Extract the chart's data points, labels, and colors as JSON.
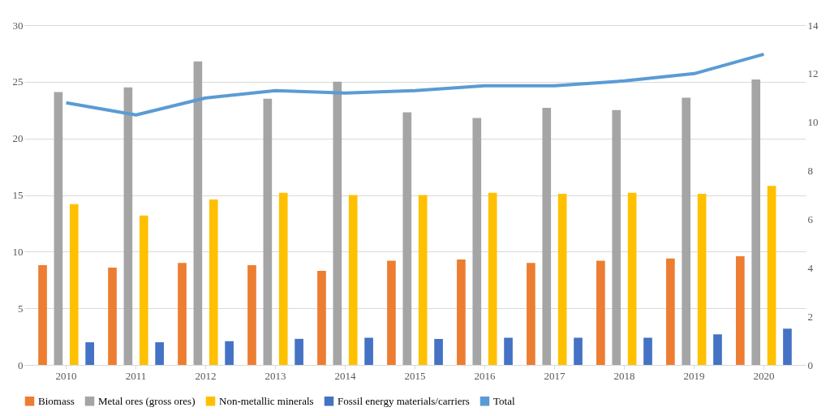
{
  "chart_data": {
    "type": "bar",
    "categories": [
      "2010",
      "2011",
      "2012",
      "2013",
      "2014",
      "2015",
      "2016",
      "2017",
      "2018",
      "2019",
      "2020"
    ],
    "series": [
      {
        "name": "Biomass",
        "color": "#ed7d31",
        "values": [
          8.8,
          8.6,
          9.0,
          8.8,
          8.3,
          9.2,
          9.3,
          9.0,
          9.2,
          9.4,
          9.6
        ]
      },
      {
        "name": "Metal ores (gross ores)",
        "color": "#a5a5a5",
        "values": [
          24.1,
          24.5,
          26.8,
          23.5,
          25.0,
          22.3,
          21.8,
          22.7,
          22.5,
          23.6,
          25.2
        ]
      },
      {
        "name": "Non-metallic minerals",
        "color": "#ffc000",
        "values": [
          14.2,
          13.2,
          14.6,
          15.2,
          15.0,
          15.0,
          15.2,
          15.1,
          15.2,
          15.1,
          15.8
        ]
      },
      {
        "name": "Fossil energy materials/carriers",
        "color": "#4472c4",
        "values": [
          2.0,
          2.0,
          2.1,
          2.3,
          2.4,
          2.3,
          2.4,
          2.4,
          2.4,
          2.7,
          3.2
        ]
      },
      {
        "name": "Total",
        "color": "#5b9bd5",
        "type": "line",
        "axis": "y2",
        "values": [
          10.8,
          10.3,
          11.0,
          11.3,
          11.2,
          11.3,
          11.5,
          11.5,
          11.7,
          12.0,
          12.8
        ]
      }
    ],
    "ylim": [
      0,
      30
    ],
    "yticks": [
      0,
      5,
      10,
      15,
      20,
      25,
      30
    ],
    "y2lim": [
      0,
      14
    ],
    "y2ticks": [
      0,
      2,
      4,
      6,
      8,
      10,
      12,
      14
    ],
    "grid": "y",
    "legend": "bottom",
    "marker": "none",
    "line_style": "solid"
  }
}
